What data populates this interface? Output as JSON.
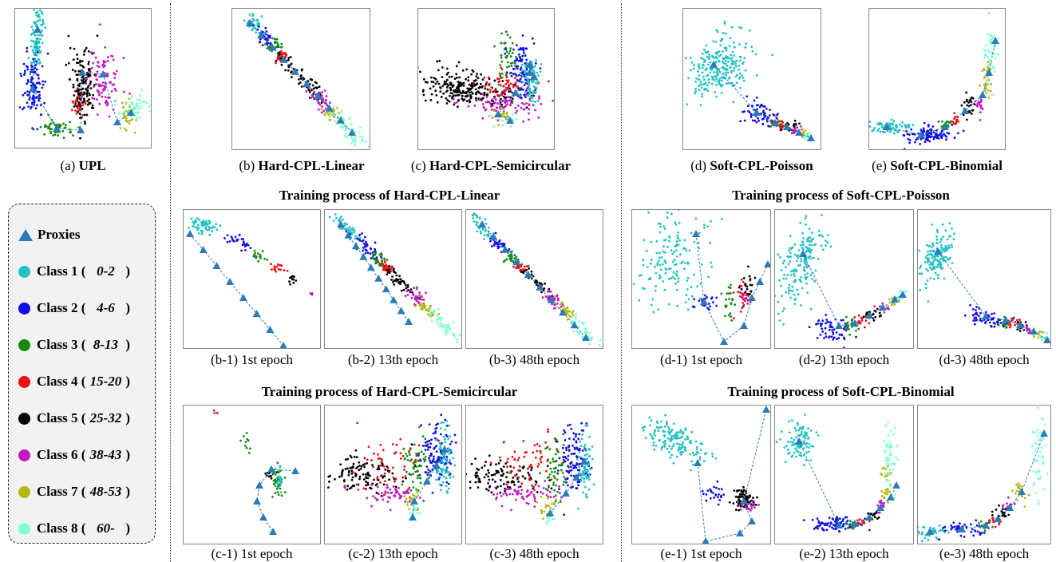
{
  "colors": {
    "proxy": "#2b7bb9",
    "classes": [
      "#22c2c4",
      "#1010e6",
      "#138a13",
      "#f01010",
      "#000000",
      "#c418c4",
      "#b8b812",
      "#7fffd4"
    ]
  },
  "legend": {
    "proxies_label": "Proxies",
    "items": [
      {
        "label": "Class 1 (",
        "range": "0-2",
        "close": ")"
      },
      {
        "label": "Class 2 (",
        "range": "4-6",
        "close": ")"
      },
      {
        "label": "Class 3 (",
        "range": "8-13",
        "close": ")"
      },
      {
        "label": "Class 4 (",
        "range": "15-20",
        "close": ")"
      },
      {
        "label": "Class 5 (",
        "range": "25-32",
        "close": ")"
      },
      {
        "label": "Class 6 (",
        "range": "38-43",
        "close": ")"
      },
      {
        "label": "Class 7 (",
        "range": "48-53",
        "close": ")"
      },
      {
        "label": "Class 8 (",
        "range": "60-",
        "close": ")"
      }
    ]
  },
  "top": {
    "a": {
      "prefix": "(a) ",
      "name": "UPL"
    },
    "b": {
      "prefix": "(b) ",
      "name": "Hard-CPL-Linear"
    },
    "c": {
      "prefix": "(c) ",
      "name": "Hard-CPL-Semicircular"
    },
    "d": {
      "prefix": "(d) ",
      "name": "Soft-CPL-Poisson"
    },
    "e": {
      "prefix": "(e) ",
      "name": "Soft-CPL-Binomial"
    }
  },
  "sections": {
    "b": "Training process of Hard-CPL-Linear",
    "c": "Training process of Hard-CPL-Semicircular",
    "d": "Training process of Soft-CPL-Poisson",
    "e": "Training process of Soft-CPL-Binomial"
  },
  "subcaptions": {
    "b1": "(b-1) 1st epoch",
    "b2": "(b-2) 13th epoch",
    "b3": "(b-3) 48th epoch",
    "c1": "(c-1) 1st epoch",
    "c2": "(c-2) 13th epoch",
    "c3": "(c-3) 48th epoch",
    "d1": "(d-1) 1st epoch",
    "d2": "(d-2) 13th epoch",
    "d3": "(d-3) 48th epoch",
    "e1": "(e-1) 1st epoch",
    "e2": "(e-2) 13th epoch",
    "e3": "(e-3) 48th epoch"
  }
}
